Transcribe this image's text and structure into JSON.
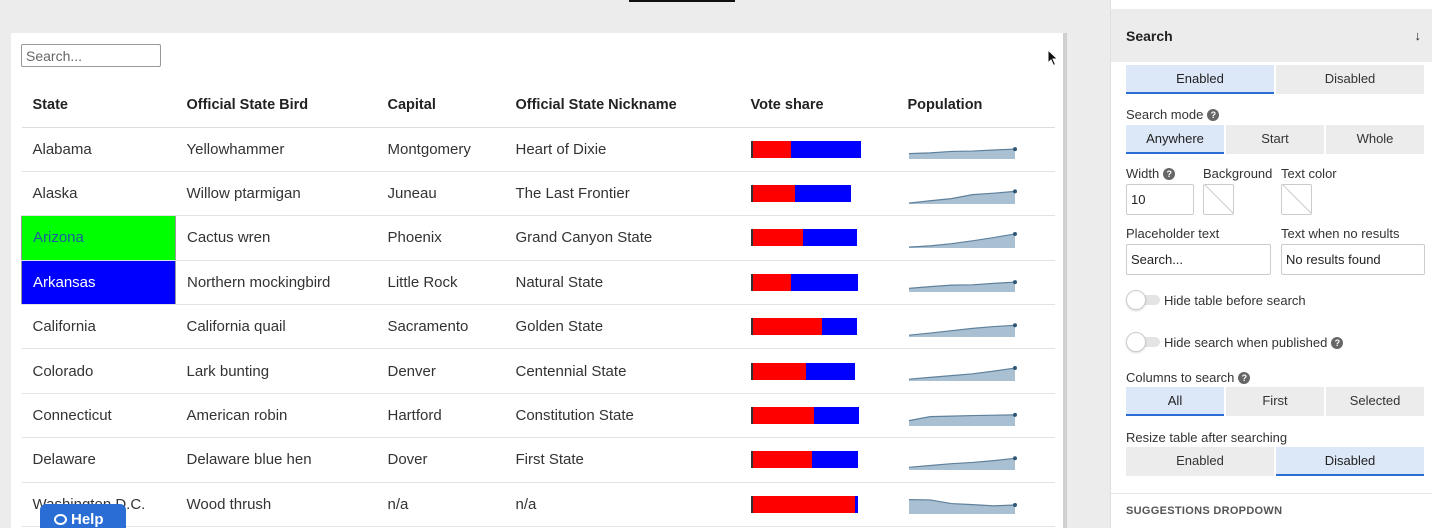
{
  "search": {
    "placeholder": "Search..."
  },
  "table": {
    "headers": [
      "State",
      "Official State Bird",
      "Capital",
      "Official State Nickname",
      "Vote share",
      "Population"
    ],
    "rows": [
      {
        "state": "Alabama",
        "bird": "Yellowhammer",
        "capital": "Montgomery",
        "nickname": "Heart of Dixie",
        "vote_red": 0.36,
        "vote_blue": 0.64,
        "vote_total": 1.0,
        "population": [
          0.3,
          0.34,
          0.42,
          0.44,
          0.5,
          0.55
        ]
      },
      {
        "state": "Alaska",
        "bird": "Willow ptarmigan",
        "capital": "Juneau",
        "nickname": "The Last Frontier",
        "vote_red": 0.39,
        "vote_blue": 0.52,
        "vote_total": 0.91,
        "population": [
          0.05,
          0.18,
          0.3,
          0.52,
          0.6,
          0.7
        ]
      },
      {
        "state": "Arizona",
        "bird": "Cactus wren",
        "capital": "Phoenix",
        "nickname": "Grand Canyon State",
        "vote_red": 0.47,
        "vote_blue": 0.5,
        "vote_total": 0.97,
        "population": [
          0.05,
          0.12,
          0.24,
          0.4,
          0.58,
          0.78
        ],
        "highlight": "green"
      },
      {
        "state": "Arkansas",
        "bird": "Northern mockingbird",
        "capital": "Little Rock",
        "nickname": "Natural State",
        "vote_red": 0.36,
        "vote_blue": 0.62,
        "vote_total": 0.98,
        "population": [
          0.2,
          0.3,
          0.38,
          0.4,
          0.48,
          0.55
        ],
        "highlight": "blue"
      },
      {
        "state": "California",
        "bird": "California quail",
        "capital": "Sacramento",
        "nickname": "Golden State",
        "vote_red": 0.64,
        "vote_blue": 0.33,
        "vote_total": 0.97,
        "population": [
          0.1,
          0.22,
          0.35,
          0.48,
          0.58,
          0.65
        ]
      },
      {
        "state": "Colorado",
        "bird": "Lark bunting",
        "capital": "Denver",
        "nickname": "Centennial State",
        "vote_red": 0.5,
        "vote_blue": 0.45,
        "vote_total": 0.95,
        "population": [
          0.1,
          0.2,
          0.3,
          0.4,
          0.55,
          0.72
        ]
      },
      {
        "state": "Connecticut",
        "bird": "American robin",
        "capital": "Hartford",
        "nickname": "Constitution State",
        "vote_red": 0.57,
        "vote_blue": 0.42,
        "vote_total": 0.99,
        "population": [
          0.3,
          0.52,
          0.55,
          0.58,
          0.6,
          0.62
        ]
      },
      {
        "state": "Delaware",
        "bird": "Delaware blue hen",
        "capital": "Dover",
        "nickname": "First State",
        "vote_red": 0.55,
        "vote_blue": 0.43,
        "vote_total": 0.98,
        "population": [
          0.15,
          0.25,
          0.35,
          0.42,
          0.52,
          0.65
        ]
      },
      {
        "state": "Washington D.C.",
        "bird": "Wood thrush",
        "capital": "n/a",
        "nickname": "n/a",
        "vote_red": 0.95,
        "vote_blue": 0.03,
        "vote_total": 0.98,
        "population": [
          0.8,
          0.78,
          0.58,
          0.52,
          0.45,
          0.5
        ]
      }
    ]
  },
  "help": {
    "label": "Help"
  },
  "panel": {
    "title": "Search",
    "enable": {
      "options": [
        "Enabled",
        "Disabled"
      ],
      "selected": "Enabled"
    },
    "search_mode": {
      "label": "Search mode",
      "options": [
        "Anywhere",
        "Start",
        "Whole"
      ],
      "selected": "Anywhere"
    },
    "width": {
      "label": "Width",
      "value": "10"
    },
    "background": {
      "label": "Background"
    },
    "text_color": {
      "label": "Text color"
    },
    "placeholder_text": {
      "label": "Placeholder text",
      "value": "Search..."
    },
    "no_results": {
      "label": "Text when no results",
      "value": "No results found"
    },
    "hide_table": {
      "label": "Hide table before search",
      "on": false
    },
    "hide_search": {
      "label": "Hide search when published",
      "on": false
    },
    "columns": {
      "label": "Columns to search",
      "options": [
        "All",
        "First",
        "Selected"
      ],
      "selected": "All"
    },
    "resize": {
      "label": "Resize table after searching",
      "options": [
        "Enabled",
        "Disabled"
      ],
      "selected": "Disabled"
    },
    "next_section": "SUGGESTIONS DROPDOWN"
  },
  "colors": {
    "accent": "#2a6dd4",
    "highlight_green": "#00ff00",
    "highlight_blue": "#0000ff",
    "vote_red": "#ff0000",
    "vote_blue": "#0000ff",
    "spark_fill": "#a9c0d3",
    "spark_line": "#5f819c"
  }
}
